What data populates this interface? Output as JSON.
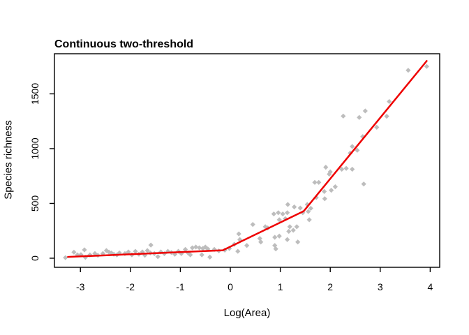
{
  "chart_data": {
    "type": "scatter",
    "title": "Continuous two-threshold",
    "xlabel": "Log(Area)",
    "ylabel": "Species richness",
    "xlim": [
      -3.52,
      4.19
    ],
    "ylim": [
      -83,
      1866
    ],
    "x_ticks": [
      -3,
      -2,
      -1,
      0,
      1,
      2,
      3,
      4
    ],
    "y_ticks": [
      0,
      500,
      1000,
      1500
    ],
    "grid": false,
    "legend": false,
    "point_color": "#bdbdbd",
    "line_color": "#ee0000",
    "axis_color": "#000000",
    "points": [
      [
        -3.3,
        5
      ],
      [
        -3.13,
        55
      ],
      [
        -3.06,
        30
      ],
      [
        -2.99,
        33
      ],
      [
        -2.92,
        76
      ],
      [
        -2.9,
        8
      ],
      [
        -2.81,
        30
      ],
      [
        -2.71,
        43
      ],
      [
        -2.65,
        26
      ],
      [
        -2.55,
        43
      ],
      [
        -2.48,
        70
      ],
      [
        -2.43,
        56
      ],
      [
        -2.38,
        48
      ],
      [
        -2.33,
        36
      ],
      [
        -2.27,
        30
      ],
      [
        -2.22,
        48
      ],
      [
        -2.11,
        42
      ],
      [
        -2.04,
        57
      ],
      [
        -1.97,
        31
      ],
      [
        -1.9,
        63
      ],
      [
        -1.83,
        36
      ],
      [
        -1.76,
        57
      ],
      [
        -1.71,
        27
      ],
      [
        -1.66,
        70
      ],
      [
        -1.6,
        48
      ],
      [
        -1.59,
        120
      ],
      [
        -1.52,
        42
      ],
      [
        -1.45,
        14
      ],
      [
        -1.39,
        57
      ],
      [
        -1.32,
        42
      ],
      [
        -1.25,
        63
      ],
      [
        -1.18,
        52
      ],
      [
        -1.11,
        36
      ],
      [
        -1.04,
        63
      ],
      [
        -0.98,
        42
      ],
      [
        -0.9,
        80
      ],
      [
        -0.84,
        46
      ],
      [
        -0.8,
        31
      ],
      [
        -0.76,
        95
      ],
      [
        -0.69,
        102
      ],
      [
        -0.62,
        95
      ],
      [
        -0.57,
        31
      ],
      [
        -0.55,
        89
      ],
      [
        -0.5,
        102
      ],
      [
        -0.45,
        84
      ],
      [
        -0.41,
        10
      ],
      [
        -0.32,
        80
      ],
      [
        -0.23,
        67
      ],
      [
        -0.11,
        74
      ],
      [
        -0.02,
        89
      ],
      [
        0.08,
        127
      ],
      [
        0.15,
        63
      ],
      [
        0.17,
        222
      ],
      [
        0.19,
        170
      ],
      [
        0.33,
        116
      ],
      [
        0.45,
        308
      ],
      [
        0.59,
        180
      ],
      [
        0.61,
        148
      ],
      [
        0.7,
        287
      ],
      [
        0.75,
        276
      ],
      [
        0.87,
        404
      ],
      [
        0.89,
        191
      ],
      [
        0.89,
        116
      ],
      [
        0.91,
        85
      ],
      [
        0.96,
        415
      ],
      [
        0.98,
        351
      ],
      [
        0.98,
        202
      ],
      [
        1.05,
        404
      ],
      [
        1.1,
        361
      ],
      [
        1.14,
        415
      ],
      [
        1.14,
        170
      ],
      [
        1.15,
        490
      ],
      [
        1.17,
        245
      ],
      [
        1.19,
        287
      ],
      [
        1.26,
        255
      ],
      [
        1.28,
        468
      ],
      [
        1.33,
        287
      ],
      [
        1.35,
        148
      ],
      [
        1.4,
        458
      ],
      [
        1.45,
        415
      ],
      [
        1.54,
        490
      ],
      [
        1.56,
        426
      ],
      [
        1.58,
        351
      ],
      [
        1.61,
        455
      ],
      [
        1.72,
        554
      ],
      [
        1.69,
        692
      ],
      [
        1.77,
        692
      ],
      [
        1.88,
        609
      ],
      [
        1.89,
        543
      ],
      [
        1.91,
        830
      ],
      [
        1.98,
        767
      ],
      [
        2.0,
        788
      ],
      [
        2.02,
        620
      ],
      [
        2.1,
        652
      ],
      [
        2.23,
        812
      ],
      [
        2.32,
        820
      ],
      [
        2.4,
        960
      ],
      [
        2.44,
        812
      ],
      [
        2.44,
        1020
      ],
      [
        2.54,
        985
      ],
      [
        2.26,
        1297
      ],
      [
        2.58,
        1285
      ],
      [
        2.65,
        1110
      ],
      [
        2.67,
        677
      ],
      [
        2.7,
        1344
      ],
      [
        2.93,
        1195
      ],
      [
        3.13,
        1295
      ],
      [
        3.18,
        1430
      ],
      [
        3.56,
        1715
      ],
      [
        3.93,
        1750
      ]
    ],
    "fit_line": [
      [
        -3.25,
        12
      ],
      [
        -0.15,
        72
      ],
      [
        1.47,
        430
      ],
      [
        3.93,
        1800
      ]
    ]
  }
}
